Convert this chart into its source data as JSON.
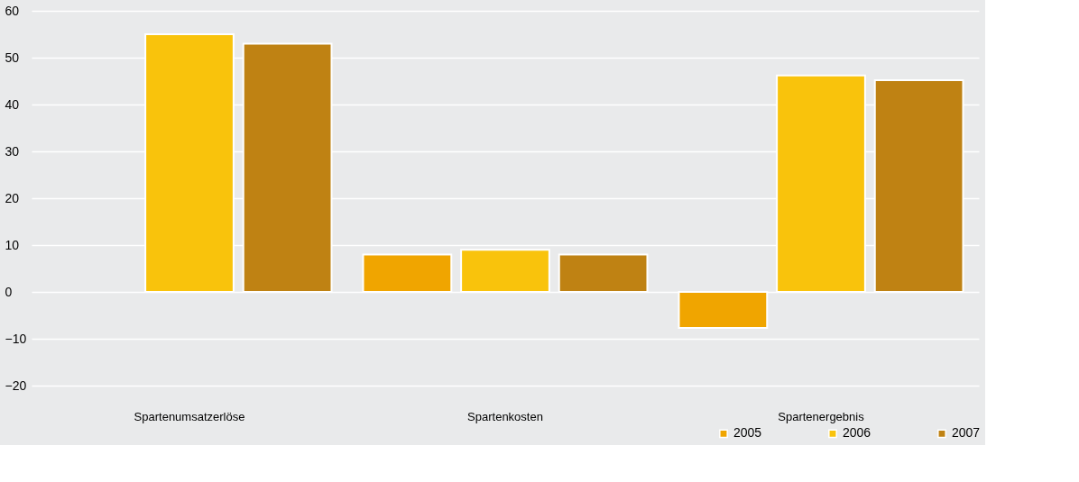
{
  "chart_data": {
    "type": "bar",
    "categories": [
      "Spartenumsatzerlöse",
      "Spartenkosten",
      "Spartenergebnis"
    ],
    "series": [
      {
        "name": "2005",
        "color": "#f0a500",
        "values": [
          null,
          8,
          -7.7
        ]
      },
      {
        "name": "2006",
        "color": "#f9c30c",
        "values": [
          55,
          9,
          46.2
        ]
      },
      {
        "name": "2007",
        "color": "#bf8213",
        "values": [
          53,
          8,
          45.2
        ]
      }
    ],
    "ylim": [
      -20,
      60
    ],
    "yticks": [
      -20,
      -10,
      0,
      10,
      20,
      30,
      40,
      50,
      60
    ],
    "grid": "y",
    "legend": "bottom right"
  }
}
